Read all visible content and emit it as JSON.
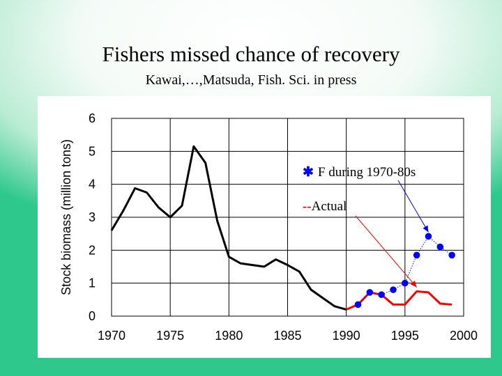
{
  "slide": {
    "title": "Fishers missed chance of recovery",
    "subtitle": "Kawai,…,Matsuda, Fish. Sci. in press"
  },
  "chart_data": {
    "type": "line",
    "title": "",
    "xlabel": "",
    "ylabel": "Stock biomass (million tons)",
    "xlim": [
      1970,
      2000
    ],
    "ylim": [
      0,
      6
    ],
    "grid": true,
    "x_ticks": [
      1970,
      1975,
      1980,
      1985,
      1990,
      1995,
      2000
    ],
    "y_ticks": [
      0,
      1,
      2,
      3,
      4,
      5,
      6
    ],
    "series": [
      {
        "name": "",
        "color": "#000000",
        "marker": "none",
        "x": [
          1970,
          1971,
          1972,
          1973,
          1974,
          1975,
          1976,
          1977,
          1978,
          1979,
          1980,
          1981,
          1982,
          1983,
          1984,
          1985,
          1986,
          1987,
          1988,
          1989,
          1990
        ],
        "y": [
          2.6,
          3.2,
          3.88,
          3.75,
          3.3,
          3.0,
          3.35,
          5.15,
          4.65,
          2.9,
          1.8,
          1.6,
          1.55,
          1.5,
          1.72,
          1.55,
          1.35,
          0.8,
          0.55,
          0.3,
          0.2
        ]
      },
      {
        "name": "Actual",
        "color": "#ff0000",
        "marker": "none",
        "x": [
          1990,
          1991,
          1992,
          1993,
          1994,
          1995,
          1996,
          1997,
          1998,
          1999
        ],
        "y": [
          0.2,
          0.35,
          0.72,
          0.65,
          0.35,
          0.35,
          0.75,
          0.72,
          0.38,
          0.35
        ]
      },
      {
        "name": "F during 1970-80s",
        "color": "#0000ff",
        "marker": "circle",
        "x": [
          1991,
          1992,
          1993,
          1994,
          1995,
          1996,
          1997,
          1998,
          1999
        ],
        "y": [
          0.35,
          0.72,
          0.65,
          0.8,
          1.0,
          1.85,
          2.42,
          2.1,
          1.85
        ]
      }
    ],
    "legend": [
      {
        "symbol": "✱",
        "symbol_color": "#0000ff",
        "label": "F during 1970-80s",
        "points_to": {
          "x": 1997,
          "y": 2.42
        }
      },
      {
        "symbol": "--",
        "symbol_color": "#ff0000",
        "label": "Actual",
        "points_to": {
          "x": 1996,
          "y": 0.75
        }
      }
    ]
  }
}
